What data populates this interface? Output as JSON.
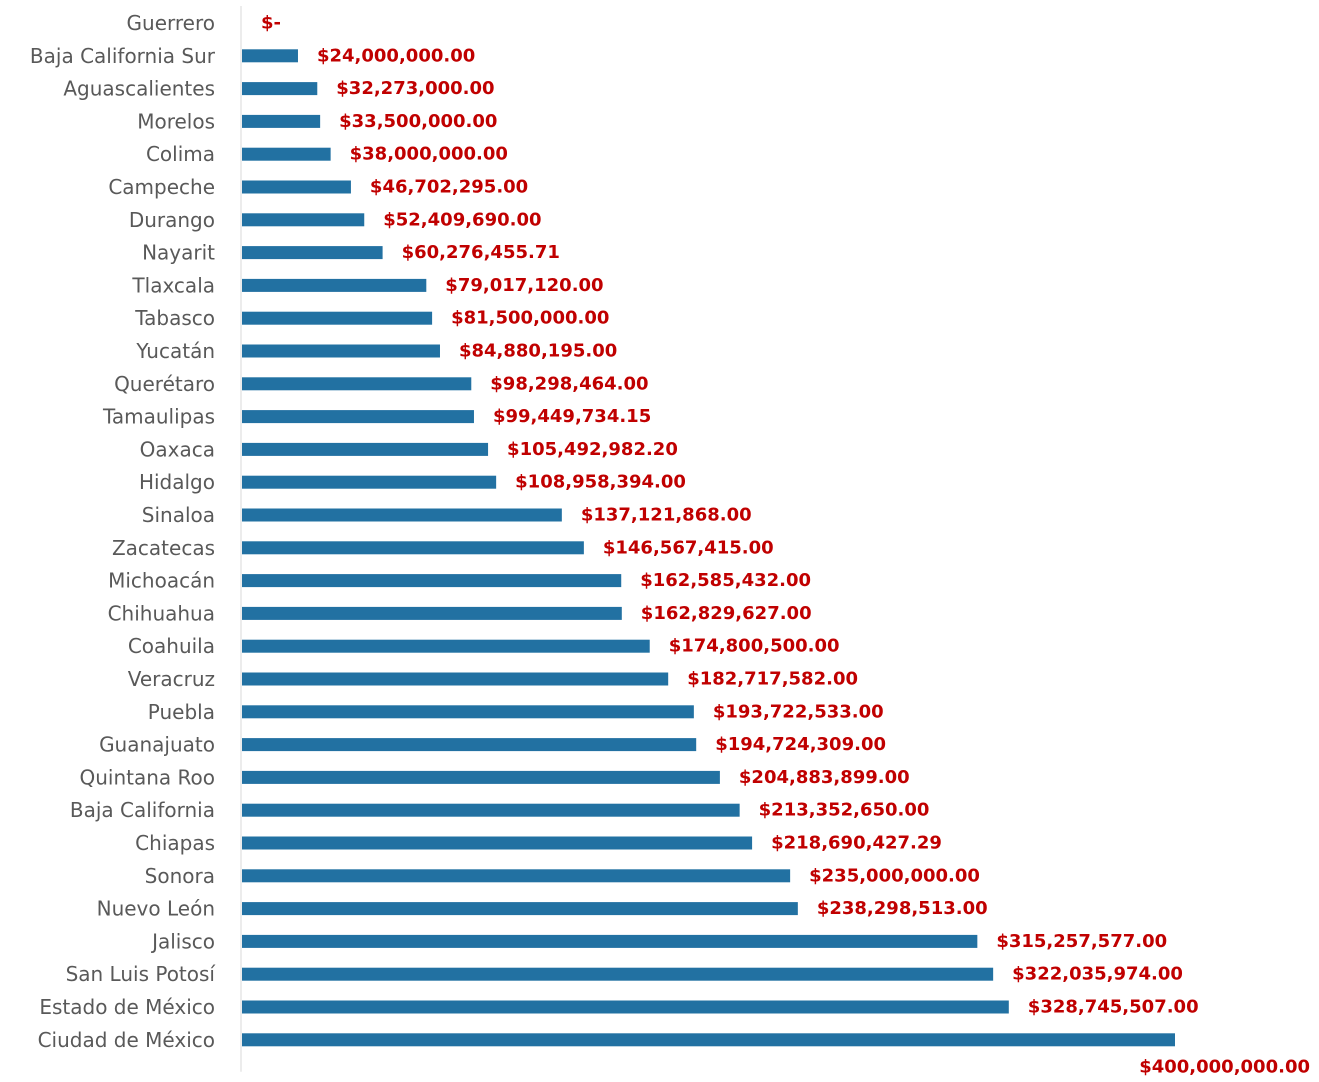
{
  "chart_data": {
    "type": "bar",
    "orientation": "horizontal",
    "title": "",
    "xlabel": "",
    "ylabel": "",
    "xlim": [
      0,
      400000000
    ],
    "grid": false,
    "legend": "none",
    "bar_color": "#2271a2",
    "value_label_color": "#c00000",
    "axis_color": "#d9d9d9",
    "categories": [
      "Guerrero",
      "Baja California Sur",
      "Aguascalientes",
      "Morelos",
      "Colima",
      "Campeche",
      "Durango",
      "Nayarit",
      "Tlaxcala",
      "Tabasco",
      "Yucatán",
      "Querétaro",
      "Tamaulipas",
      "Oaxaca",
      "Hidalgo",
      "Sinaloa",
      "Zacatecas",
      "Michoacán",
      "Chihuahua",
      "Coahuila",
      "Veracruz",
      "Puebla",
      "Guanajuato",
      "Quintana Roo",
      "Baja California",
      "Chiapas",
      "Sonora",
      "Nuevo León",
      "Jalisco",
      "San Luis Potosí",
      "Estado de México",
      "Ciudad de México"
    ],
    "values": [
      0,
      24000000,
      32273000,
      33500000,
      38000000,
      46702295,
      52409690,
      60276455.71,
      79017120,
      81500000,
      84880195,
      98298464,
      99449734.15,
      105492982.2,
      108958394,
      137121868,
      146567415,
      162585432,
      162829627,
      174800500,
      182717582,
      193722533,
      194724309,
      204883899,
      213352650,
      218690427.29,
      235000000,
      238298513,
      315257577,
      322035974,
      328745507,
      400000000
    ],
    "value_labels": [
      "$-",
      "$24,000,000.00",
      "$32,273,000.00",
      "$33,500,000.00",
      "$38,000,000.00",
      "$46,702,295.00",
      "$52,409,690.00",
      "$60,276,455.71",
      "$79,017,120.00",
      "$81,500,000.00",
      "$84,880,195.00",
      "$98,298,464.00",
      "$99,449,734.15",
      "$105,492,982.20",
      "$108,958,394.00",
      "$137,121,868.00",
      "$146,567,415.00",
      "$162,585,432.00",
      "$162,829,627.00",
      "$174,800,500.00",
      "$182,717,582.00",
      "$193,722,533.00",
      "$194,724,309.00",
      "$204,883,899.00",
      "$213,352,650.00",
      "$218,690,427.29",
      "$235,000,000.00",
      "$238,298,513.00",
      "$315,257,577.00",
      "$322,035,974.00",
      "$328,745,507.00",
      "$400,000,000.00"
    ]
  }
}
